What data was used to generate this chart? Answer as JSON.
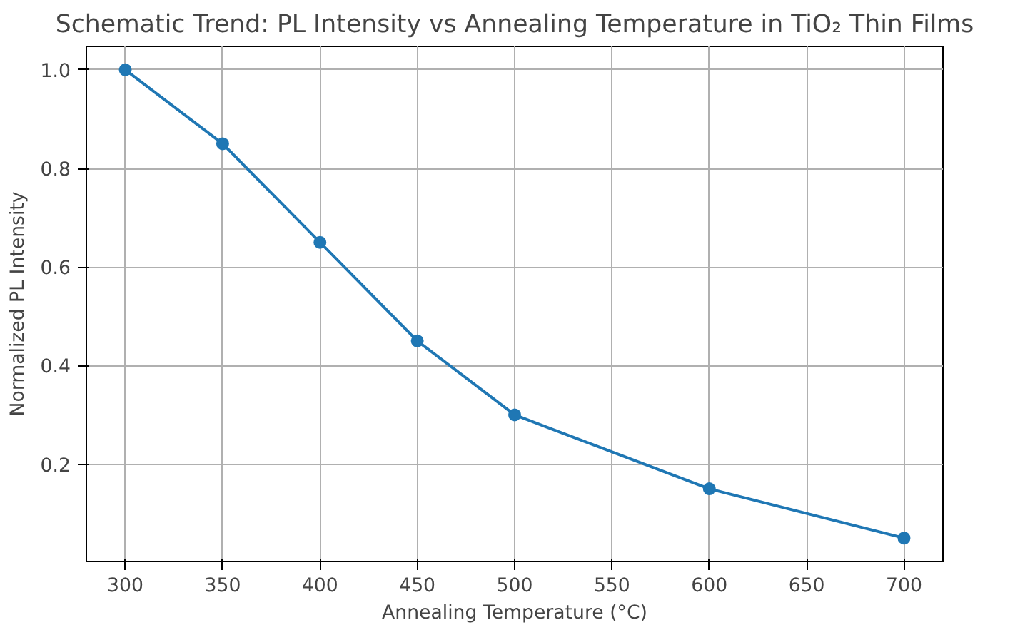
{
  "chart_data": {
    "type": "line",
    "title": "Schematic Trend: PL Intensity vs Annealing Temperature in TiO₂ Thin Films",
    "xlabel": "Annealing Temperature (°C)",
    "ylabel": "Normalized PL Intensity",
    "x": [
      300,
      350,
      400,
      450,
      500,
      600,
      700
    ],
    "series": [
      {
        "color": "#1f77b4",
        "values": [
          1.0,
          0.85,
          0.65,
          0.45,
          0.3,
          0.15,
          0.05
        ]
      }
    ],
    "xlim": [
      280,
      720
    ],
    "ylim": [
      0.0025,
      1.0475
    ],
    "xticks": [
      300,
      350,
      400,
      450,
      500,
      550,
      600,
      650,
      700
    ],
    "yticks": [
      {
        "value": 0.2,
        "label": "0.2"
      },
      {
        "value": 0.4,
        "label": "0.4"
      },
      {
        "value": 0.6,
        "label": "0.6"
      },
      {
        "value": 0.8,
        "label": "0.8"
      },
      {
        "value": 1.0,
        "label": "1.0"
      }
    ],
    "grid": true,
    "marker": "circle",
    "line_style": "solid"
  }
}
